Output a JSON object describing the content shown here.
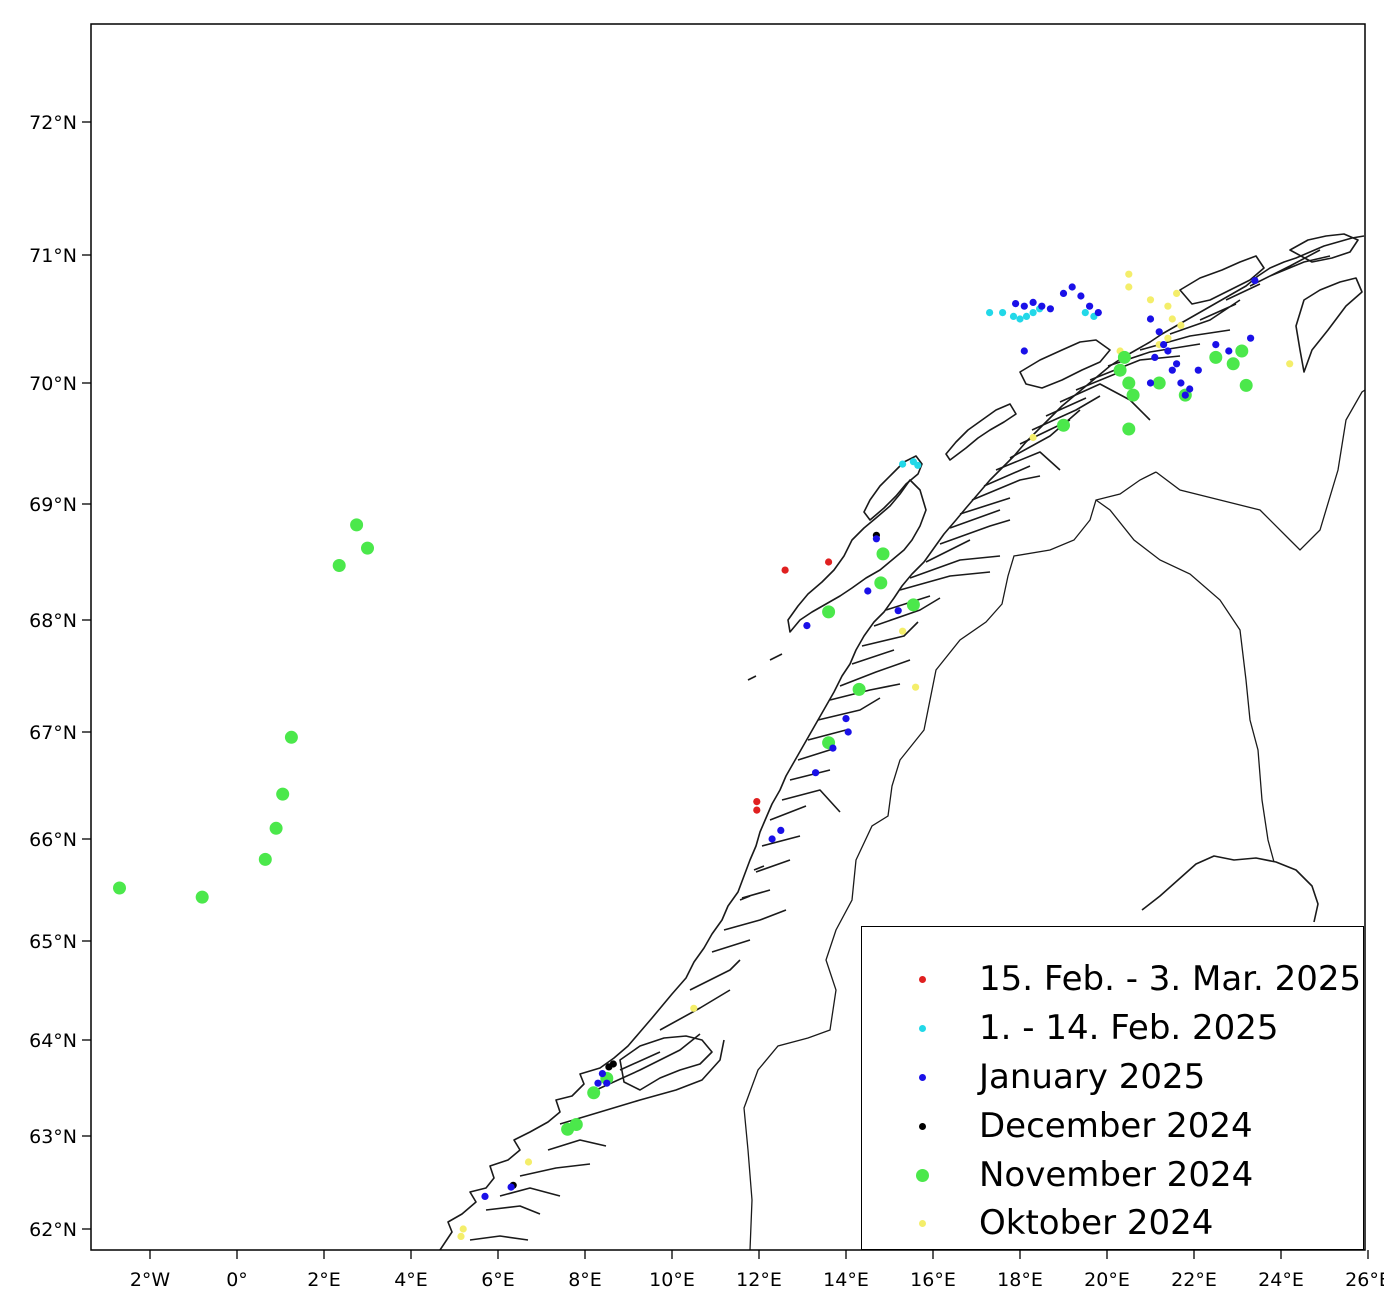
{
  "chart_data": {
    "type": "scatter",
    "title": "",
    "xlabel": "",
    "ylabel": "",
    "xlim": [
      -3.4,
      26.1
    ],
    "ylim": [
      61.85,
      72.7
    ],
    "x_ticks": [
      {
        "value": -2,
        "label": "2°W"
      },
      {
        "value": 0,
        "label": "0°"
      },
      {
        "value": 2,
        "label": "2°E"
      },
      {
        "value": 4,
        "label": "4°E"
      },
      {
        "value": 6,
        "label": "6°E"
      },
      {
        "value": 8,
        "label": "8°E"
      },
      {
        "value": 10,
        "label": "10°E"
      },
      {
        "value": 12,
        "label": "12°E"
      },
      {
        "value": 14,
        "label": "14°E"
      },
      {
        "value": 16,
        "label": "16°E"
      },
      {
        "value": 18,
        "label": "18°E"
      },
      {
        "value": 20,
        "label": "20°E"
      },
      {
        "value": 22,
        "label": "22°E"
      },
      {
        "value": 24,
        "label": "24°E"
      },
      {
        "value": 26,
        "label": "26°E"
      }
    ],
    "y_ticks": [
      {
        "value": 62,
        "label": "62°N"
      },
      {
        "value": 63,
        "label": "63°N"
      },
      {
        "value": 64,
        "label": "64°N"
      },
      {
        "value": 65,
        "label": "65°N"
      },
      {
        "value": 66,
        "label": "66°N"
      },
      {
        "value": 67,
        "label": "67°N"
      },
      {
        "value": 68,
        "label": "68°N"
      },
      {
        "value": 69,
        "label": "69°N"
      },
      {
        "value": 70,
        "label": "70°N"
      },
      {
        "value": 71,
        "label": "71°N"
      },
      {
        "value": 72,
        "label": "72°N"
      }
    ],
    "legend_position": "bottom-right",
    "series": [
      {
        "name": "15. Feb. - 3. Mar. 2025",
        "color": "#e02020",
        "marker": "small",
        "points": [
          [
            12.6,
            68.43
          ],
          [
            13.6,
            68.5
          ],
          [
            11.95,
            66.35
          ],
          [
            11.95,
            66.27
          ]
        ]
      },
      {
        "name": "1. - 14. Feb. 2025",
        "color": "#22d8e8",
        "marker": "small",
        "points": [
          [
            17.3,
            70.55
          ],
          [
            17.6,
            70.55
          ],
          [
            17.85,
            70.52
          ],
          [
            18.0,
            70.5
          ],
          [
            18.15,
            70.52
          ],
          [
            18.3,
            70.55
          ],
          [
            18.45,
            70.58
          ],
          [
            19.5,
            70.55
          ],
          [
            19.7,
            70.52
          ],
          [
            15.3,
            69.33
          ],
          [
            15.55,
            69.35
          ],
          [
            15.65,
            69.32
          ]
        ]
      },
      {
        "name": "January 2025",
        "color": "#1a10e8",
        "marker": "small",
        "points": [
          [
            17.9,
            70.62
          ],
          [
            18.1,
            70.6
          ],
          [
            18.3,
            70.63
          ],
          [
            18.5,
            70.6
          ],
          [
            18.7,
            70.58
          ],
          [
            19.0,
            70.7
          ],
          [
            19.2,
            70.75
          ],
          [
            19.4,
            70.68
          ],
          [
            19.6,
            70.6
          ],
          [
            19.8,
            70.55
          ],
          [
            18.1,
            70.25
          ],
          [
            21.0,
            70.5
          ],
          [
            21.2,
            70.4
          ],
          [
            21.3,
            70.3
          ],
          [
            21.1,
            70.2
          ],
          [
            21.5,
            70.1
          ],
          [
            21.7,
            70.0
          ],
          [
            21.9,
            69.95
          ],
          [
            21.4,
            70.25
          ],
          [
            21.6,
            70.15
          ],
          [
            21.8,
            69.9
          ],
          [
            22.5,
            70.3
          ],
          [
            22.8,
            70.25
          ],
          [
            23.3,
            70.35
          ],
          [
            23.4,
            70.8
          ],
          [
            22.1,
            70.1
          ],
          [
            21.0,
            70.0
          ],
          [
            14.7,
            68.7
          ],
          [
            14.5,
            68.25
          ],
          [
            15.2,
            68.08
          ],
          [
            13.1,
            67.95
          ],
          [
            14.0,
            67.12
          ],
          [
            14.05,
            67.0
          ],
          [
            13.7,
            66.85
          ],
          [
            13.3,
            66.62
          ],
          [
            12.5,
            66.08
          ],
          [
            12.3,
            66.0
          ],
          [
            8.4,
            63.65
          ],
          [
            8.3,
            63.55
          ],
          [
            8.5,
            63.55
          ],
          [
            6.3,
            62.45
          ],
          [
            5.7,
            62.35
          ]
        ]
      },
      {
        "name": "December 2024",
        "color": "#000000",
        "marker": "small",
        "points": [
          [
            14.7,
            68.73
          ],
          [
            8.55,
            63.72
          ],
          [
            8.65,
            63.75
          ],
          [
            6.35,
            62.47
          ]
        ]
      },
      {
        "name": "November 2024",
        "color": "#4be84b",
        "marker": "large",
        "points": [
          [
            -2.7,
            65.52
          ],
          [
            -0.8,
            65.43
          ],
          [
            0.65,
            65.8
          ],
          [
            0.9,
            66.1
          ],
          [
            1.05,
            66.42
          ],
          [
            1.25,
            66.95
          ],
          [
            2.35,
            68.47
          ],
          [
            2.75,
            68.82
          ],
          [
            3.0,
            68.62
          ],
          [
            14.85,
            68.57
          ],
          [
            14.8,
            68.32
          ],
          [
            15.55,
            68.13
          ],
          [
            13.6,
            68.07
          ],
          [
            14.3,
            67.38
          ],
          [
            13.6,
            66.9
          ],
          [
            8.5,
            63.6
          ],
          [
            8.2,
            63.45
          ],
          [
            7.8,
            63.12
          ],
          [
            7.6,
            63.07
          ],
          [
            19.0,
            69.65
          ],
          [
            20.5,
            69.62
          ],
          [
            20.3,
            70.1
          ],
          [
            20.5,
            70.0
          ],
          [
            20.6,
            69.9
          ],
          [
            20.4,
            70.2
          ],
          [
            21.8,
            69.9
          ],
          [
            22.5,
            70.2
          ],
          [
            22.9,
            70.15
          ],
          [
            23.1,
            70.25
          ],
          [
            23.2,
            69.98
          ],
          [
            21.2,
            70.0
          ]
        ]
      },
      {
        "name": "Oktober 2024",
        "color": "#f4ee6a",
        "marker": "small",
        "points": [
          [
            20.5,
            70.85
          ],
          [
            20.5,
            70.75
          ],
          [
            21.0,
            70.65
          ],
          [
            21.4,
            70.6
          ],
          [
            21.6,
            70.7
          ],
          [
            21.5,
            70.5
          ],
          [
            21.7,
            70.45
          ],
          [
            21.4,
            70.35
          ],
          [
            21.2,
            70.3
          ],
          [
            20.3,
            70.25
          ],
          [
            24.2,
            70.15
          ],
          [
            18.3,
            69.55
          ],
          [
            15.3,
            67.9
          ],
          [
            15.6,
            67.4
          ],
          [
            10.5,
            64.32
          ],
          [
            6.7,
            62.72
          ],
          [
            5.2,
            62.0
          ],
          [
            5.15,
            61.92
          ]
        ]
      }
    ]
  },
  "legend": {
    "items": [
      {
        "label": "15. Feb. - 3. Mar. 2025",
        "color": "#e02020",
        "size": "small"
      },
      {
        "label": "1. - 14. Feb. 2025",
        "color": "#22d8e8",
        "size": "small"
      },
      {
        "label": "January 2025",
        "color": "#1a10e8",
        "size": "small"
      },
      {
        "label": "December 2024",
        "color": "#000000",
        "size": "small"
      },
      {
        "label": "November 2024",
        "color": "#4be84b",
        "size": "large"
      },
      {
        "label": "Oktober 2024",
        "color": "#f4ee6a",
        "size": "small"
      }
    ]
  }
}
